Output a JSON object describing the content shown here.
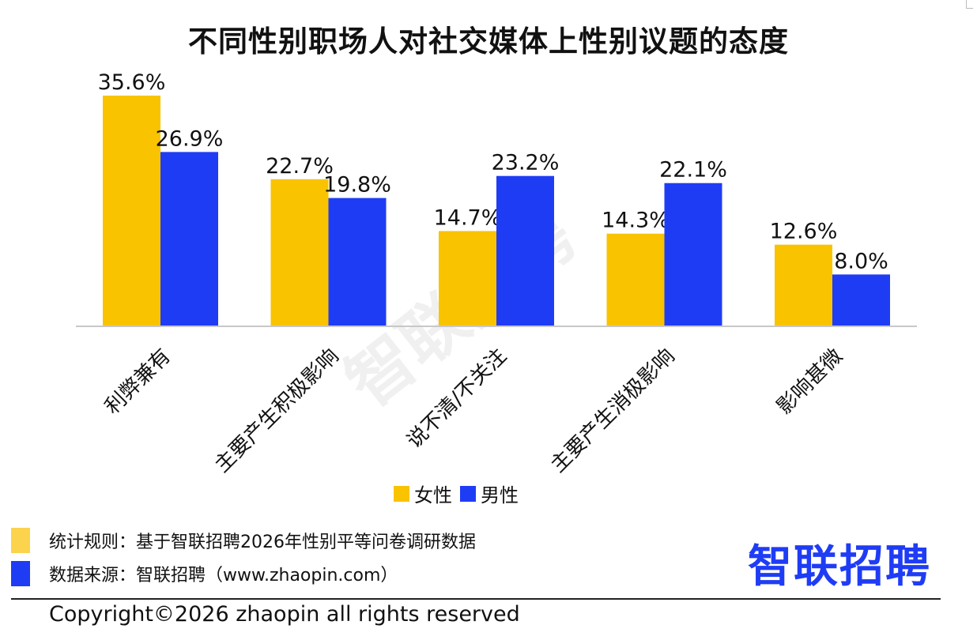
{
  "title": "不同性别职场人对社交媒体上性别议题的态度",
  "watermark": "智联招聘",
  "legend": {
    "female_label": "女性",
    "male_label": "男性"
  },
  "notes": {
    "rule": "统计规则：基于智联招聘2026年性别平等问卷调研数据",
    "source": "数据来源：智联招聘（www.zhaopin.com）"
  },
  "logo": "智联招聘",
  "copyright": "Copyright©2026 zhaopin all rights reserved",
  "colors": {
    "female": "#f9c300",
    "male": "#1f3cf5",
    "axis": "#c8c8c8",
    "note_female": "#fcd34d"
  },
  "chart_data": {
    "type": "bar",
    "categories": [
      "利弊兼有",
      "主要产生积极影响",
      "说不清/不关注",
      "主要产生消极影响",
      "影响甚微"
    ],
    "series": [
      {
        "name": "女性",
        "values": [
          35.6,
          22.7,
          14.7,
          14.3,
          12.6
        ],
        "labels": [
          "35.6%",
          "22.7%",
          "14.7%",
          "14.3%",
          "12.6%"
        ]
      },
      {
        "name": "男性",
        "values": [
          26.9,
          19.8,
          23.2,
          22.1,
          8.0
        ],
        "labels": [
          "26.9%",
          "19.8%",
          "23.2%",
          "22.1%",
          "8.0%"
        ]
      }
    ],
    "ylim": [
      0,
      35.6
    ],
    "grid": false
  }
}
